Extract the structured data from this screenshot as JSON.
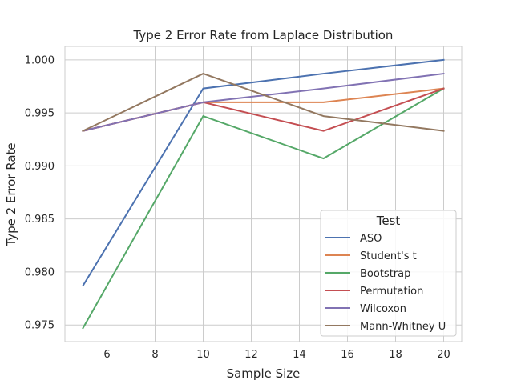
{
  "chart_data": {
    "type": "line",
    "title": "Type 2 Error Rate from Laplace Distribution",
    "xlabel": "Sample Size",
    "ylabel": "Type 2 Error Rate",
    "x": [
      5,
      10,
      15,
      20
    ],
    "xlim": [
      4.25,
      20.75
    ],
    "ylim": [
      0.97343,
      1.00127
    ],
    "xticks": [
      6,
      8,
      10,
      12,
      14,
      16,
      18,
      20
    ],
    "yticks": [
      0.975,
      0.98,
      0.985,
      0.99,
      0.995,
      1.0
    ],
    "xtick_labels": [
      "6",
      "8",
      "10",
      "12",
      "14",
      "16",
      "18",
      "20"
    ],
    "ytick_labels": [
      "0.975",
      "0.980",
      "0.985",
      "0.990",
      "0.995",
      "1.000"
    ],
    "grid": true,
    "legend": {
      "title": "Test",
      "placement": "lower-right"
    },
    "series": [
      {
        "name": "ASO",
        "color": "#4c72b0",
        "values": [
          0.9787,
          0.9973,
          0.9987,
          1.0
        ]
      },
      {
        "name": "Student's t",
        "color": "#dd8452",
        "values": [
          0.9933,
          0.996,
          0.996,
          0.9973
        ]
      },
      {
        "name": "Bootstrap",
        "color": "#55a868",
        "values": [
          0.9747,
          0.9947,
          0.9907,
          0.9973
        ]
      },
      {
        "name": "Permutation",
        "color": "#c44e52",
        "values": [
          0.9933,
          0.996,
          0.9933,
          0.9973
        ]
      },
      {
        "name": "Wilcoxon",
        "color": "#8172b3",
        "values": [
          0.9933,
          0.996,
          0.9973,
          0.9987
        ]
      },
      {
        "name": "Mann-Whitney U",
        "color": "#937860",
        "values": [
          0.9933,
          0.9987,
          0.9947,
          0.9933
        ]
      }
    ]
  }
}
